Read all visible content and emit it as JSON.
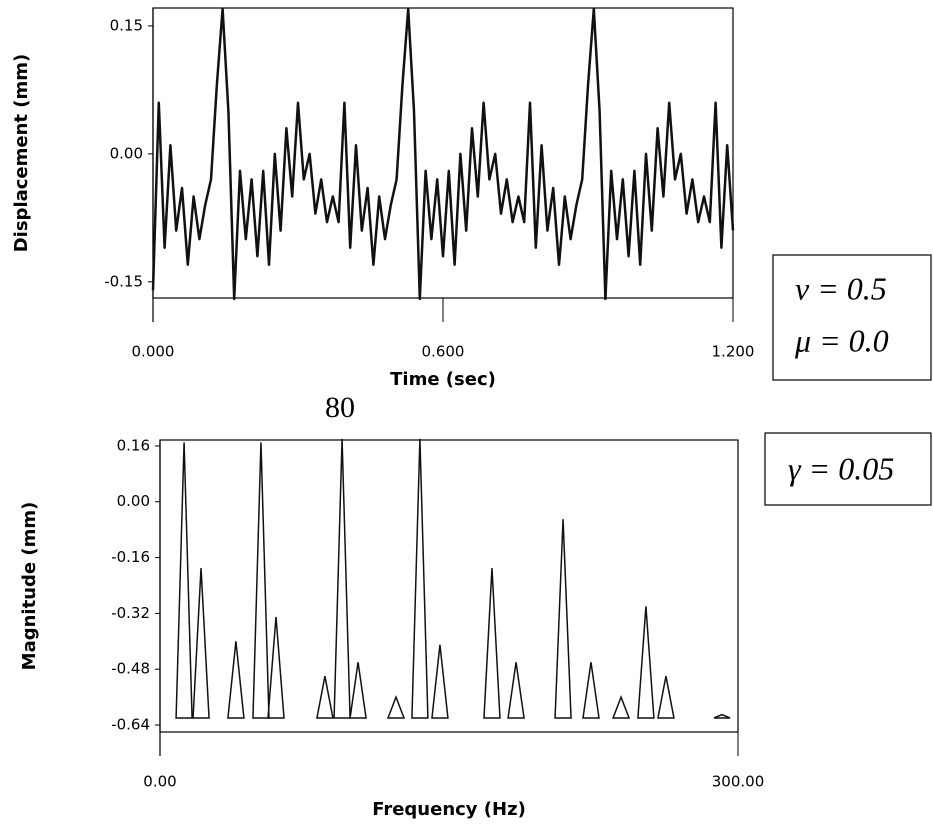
{
  "chart_data": [
    {
      "type": "line",
      "x_label": "Time (sec)",
      "y_label": "Displacement (mm)",
      "color": "#111111",
      "xlim": [
        0,
        1.2
      ],
      "ylim": [
        -0.169,
        0.171
      ],
      "xticks": [
        {
          "value": 0,
          "label": "0.000"
        },
        {
          "value": 0.6,
          "label": "0.600"
        },
        {
          "value": 1.2,
          "label": "1.200"
        }
      ],
      "yticks": [
        0.15,
        {
          "value": 0,
          "label": "0.00"
        },
        -0.15
      ],
      "x": [
        0,
        0.012,
        0.024,
        0.036,
        0.048,
        0.06,
        0.072,
        0.084,
        0.096,
        0.108,
        0.12,
        0.132,
        0.144,
        0.156,
        0.168,
        0.18,
        0.192,
        0.204,
        0.216,
        0.228,
        0.24,
        0.252,
        0.264,
        0.276,
        0.288,
        0.3,
        0.312,
        0.324,
        0.336,
        0.348,
        0.36,
        0.372,
        0.384,
        0.396,
        0.408,
        0.42,
        0.432,
        0.444,
        0.456,
        0.468,
        0.48,
        0.492,
        0.504,
        0.516,
        0.528,
        0.54,
        0.552,
        0.564,
        0.576,
        0.588,
        0.6,
        0.612,
        0.624,
        0.636,
        0.648,
        0.66,
        0.672,
        0.684,
        0.696,
        0.708,
        0.72,
        0.732,
        0.744,
        0.756,
        0.768,
        0.78,
        0.792,
        0.804,
        0.816,
        0.828,
        0.84,
        0.852,
        0.864,
        0.876,
        0.888,
        0.9,
        0.912,
        0.924,
        0.936,
        0.948,
        0.96,
        0.972,
        0.984,
        0.996,
        1.008,
        1.02,
        1.032,
        1.044,
        1.056,
        1.068,
        1.08,
        1.092,
        1.104,
        1.116,
        1.128,
        1.14,
        1.152,
        1.164,
        1.176,
        1.188,
        1.2
      ],
      "values": [
        -0.16,
        0.06,
        -0.11,
        0.01,
        -0.09,
        -0.04,
        -0.13,
        -0.05,
        -0.1,
        -0.06,
        -0.03,
        0.08,
        0.17,
        0.05,
        -0.17,
        -0.02,
        -0.1,
        -0.03,
        -0.12,
        -0.02,
        -0.13,
        0.0,
        -0.09,
        0.03,
        -0.05,
        0.06,
        -0.03,
        0.0,
        -0.07,
        -0.03,
        -0.08,
        -0.05,
        -0.08,
        0.06,
        -0.11,
        0.01,
        -0.09,
        -0.04,
        -0.13,
        -0.05,
        -0.1,
        -0.06,
        -0.03,
        0.08,
        0.17,
        0.05,
        -0.17,
        -0.02,
        -0.1,
        -0.03,
        -0.12,
        -0.02,
        -0.13,
        0.0,
        -0.09,
        0.03,
        -0.05,
        0.06,
        -0.03,
        0.0,
        -0.07,
        -0.03,
        -0.08,
        -0.05,
        -0.08,
        0.06,
        -0.11,
        0.01,
        -0.09,
        -0.04,
        -0.13,
        -0.05,
        -0.1,
        -0.06,
        -0.03,
        0.08,
        0.17,
        0.05,
        -0.17,
        -0.02,
        -0.1,
        -0.03,
        -0.12,
        -0.02,
        -0.13,
        0.0,
        -0.09,
        0.03,
        -0.05,
        0.06,
        -0.03,
        0.0,
        -0.07,
        -0.03,
        -0.08,
        -0.05,
        -0.08,
        0.06,
        -0.11,
        0.01,
        -0.09
      ]
    },
    {
      "type": "spike",
      "title": "80",
      "x_label": "Frequency (Hz)",
      "y_label": "Magnitude (mm)",
      "color": "#111111",
      "xlim": [
        0,
        300
      ],
      "ylim": [
        -0.66,
        0.177
      ],
      "xticks": [
        {
          "value": 0,
          "label": "0.00"
        },
        {
          "value": 300,
          "label": "300.00"
        }
      ],
      "yticks": [
        0.16,
        {
          "value": 0,
          "label": "0.00"
        },
        -0.16,
        -0.32,
        -0.48,
        -0.64
      ],
      "x": [
        12.5,
        21.3,
        39.4,
        52.4,
        60.2,
        85.6,
        94.5,
        102.8,
        122.5,
        134.9,
        145.3,
        172.3,
        184.8,
        209.2,
        223.7,
        239.3,
        252.2,
        262.6,
        291.7
      ],
      "values": [
        0.17,
        -0.19,
        -0.4,
        0.17,
        -0.33,
        -0.5,
        0.18,
        -0.46,
        -0.56,
        0.18,
        -0.41,
        -0.19,
        -0.46,
        -0.05,
        -0.46,
        -0.56,
        -0.3,
        -0.5,
        -0.61
      ]
    }
  ],
  "annotations": [
    "ν = 0.5",
    "μ = 0.0",
    "γ = 0.05"
  ]
}
